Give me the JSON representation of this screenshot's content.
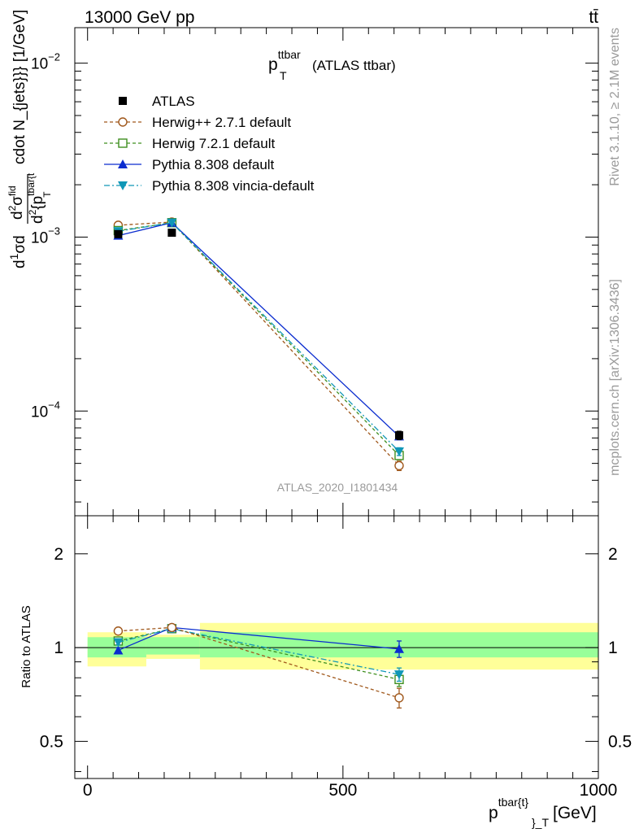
{
  "header": {
    "energy": "13000 GeV pp",
    "process": "tt̄",
    "side_top": "Rivet 3.1.10, ≥ 2.1M events",
    "side_bottom": "mcplots.cern.ch [arXiv:1306.3436]",
    "analysis": "ATLAS_2020_I1801434"
  },
  "chart_data": [
    {
      "type": "line",
      "title_main": "p",
      "title_sup": "ttbar",
      "title_sub": "T",
      "title_rest": "(ATLAS ttbar)",
      "ylabel": "d\\frac{1}{\\sigma}d\\frac{d^2\\sigma^{fid}}{d^2{p^{tbar{t}}_T}} cdot N_{jets}}} [1/GeV]",
      "ylabel_plain": "d 1/σ d d²σ^fid / d²{p^tbar{t}}_T} cdot N_jets}} [1/GeV]",
      "ylabel_right": "cdot N_{jets}}} [1/GeV]",
      "yscale": "log",
      "ylim": [
        2.5e-05,
        0.016
      ],
      "xlim": [
        -25,
        1000
      ],
      "y_ticks": [
        {
          "value": 0.01,
          "base": "10",
          "exp": "−2"
        },
        {
          "value": 0.001,
          "base": "10",
          "exp": "−3"
        },
        {
          "value": 0.0001,
          "base": "10",
          "exp": "−4"
        }
      ],
      "x": [
        60,
        165,
        610
      ],
      "bins": [
        [
          0,
          115
        ],
        [
          115,
          220
        ],
        [
          220,
          1000
        ]
      ],
      "legend_position": "upper-left",
      "series": [
        {
          "name": "ATLAS",
          "color": "#000000",
          "marker": "square-filled",
          "dash": "",
          "values": [
            0.00104,
            0.00106,
            7.25e-05
          ],
          "err": [
            4e-05,
            4e-05,
            4e-06
          ]
        },
        {
          "name": "Herwig++ 2.7.1 default",
          "color": "#a0581c",
          "marker": "circle-open",
          "dash": "4,3",
          "values": [
            0.00117,
            0.00122,
            4.85e-05
          ],
          "err": [
            0,
            0,
            3e-06
          ]
        },
        {
          "name": "Herwig 7.2.1 default",
          "color": "#3f8f1f",
          "marker": "square-open",
          "dash": "4,3",
          "values": [
            0.00109,
            0.00121,
            5.55e-05
          ],
          "err": [
            0,
            0,
            3e-06
          ]
        },
        {
          "name": "Pythia 8.308 default",
          "color": "#0a2ccf",
          "marker": "triangle-up",
          "dash": "",
          "values": [
            0.00102,
            0.00121,
            7.15e-05
          ],
          "err": [
            0,
            0,
            3e-06
          ]
        },
        {
          "name": "Pythia 8.308 vincia-default",
          "color": "#1097b7",
          "marker": "triangle-down",
          "dash": "7,3,2,3",
          "values": [
            0.00108,
            0.00121,
            5.85e-05
          ],
          "err": [
            0,
            0,
            3e-06
          ]
        }
      ]
    },
    {
      "type": "line",
      "ylabel": "Ratio to ATLAS",
      "yscale": "log",
      "ylim": [
        0.38,
        2.65
      ],
      "y_ticks": [
        {
          "value": 0.5,
          "label": "0.5"
        },
        {
          "value": 1,
          "label": "1"
        },
        {
          "value": 2,
          "label": "2"
        }
      ],
      "xlim": [
        -25,
        1000
      ],
      "x_ticks": [
        {
          "value": 0,
          "label": "0"
        },
        {
          "value": 500,
          "label": "500"
        },
        {
          "value": 1000,
          "label": "1000"
        }
      ],
      "xlabel_main": "p",
      "xlabel_sup": "tbar{t}",
      "xlabel_sub": "}_T",
      "xlabel_rest": "[GeV]",
      "bands": {
        "outer_color": "#ffff99",
        "inner_color": "#99ff99",
        "bins": [
          {
            "x": [
              0,
              115
            ],
            "inner": [
              0.93,
              1.08
            ],
            "outer": [
              0.87,
              1.12
            ]
          },
          {
            "x": [
              115,
              220
            ],
            "inner": [
              0.95,
              1.08
            ],
            "outer": [
              0.92,
              1.1
            ]
          },
          {
            "x": [
              220,
              1000
            ],
            "inner": [
              0.93,
              1.12
            ],
            "outer": [
              0.85,
              1.2
            ]
          }
        ]
      },
      "x": [
        60,
        165,
        610
      ],
      "series": [
        {
          "name": "Herwig++ 2.7.1 default",
          "color": "#a0581c",
          "marker": "circle-open",
          "dash": "4,3",
          "values": [
            1.13,
            1.16,
            0.69
          ],
          "err": [
            0.02,
            0.03,
            0.05
          ]
        },
        {
          "name": "Herwig 7.2.1 default",
          "color": "#3f8f1f",
          "marker": "square-open",
          "dash": "4,3",
          "values": [
            1.05,
            1.15,
            0.79
          ],
          "err": [
            0.02,
            0.03,
            0.04
          ]
        },
        {
          "name": "Pythia 8.308 default",
          "color": "#0a2ccf",
          "marker": "triangle-up",
          "dash": "",
          "values": [
            0.98,
            1.16,
            0.99
          ],
          "err": [
            0.02,
            0.03,
            0.06
          ]
        },
        {
          "name": "Pythia 8.308 vincia-default",
          "color": "#1097b7",
          "marker": "triangle-down",
          "dash": "7,3,2,3",
          "values": [
            1.04,
            1.15,
            0.82
          ],
          "err": [
            0.02,
            0.03,
            0.04
          ]
        }
      ]
    }
  ]
}
